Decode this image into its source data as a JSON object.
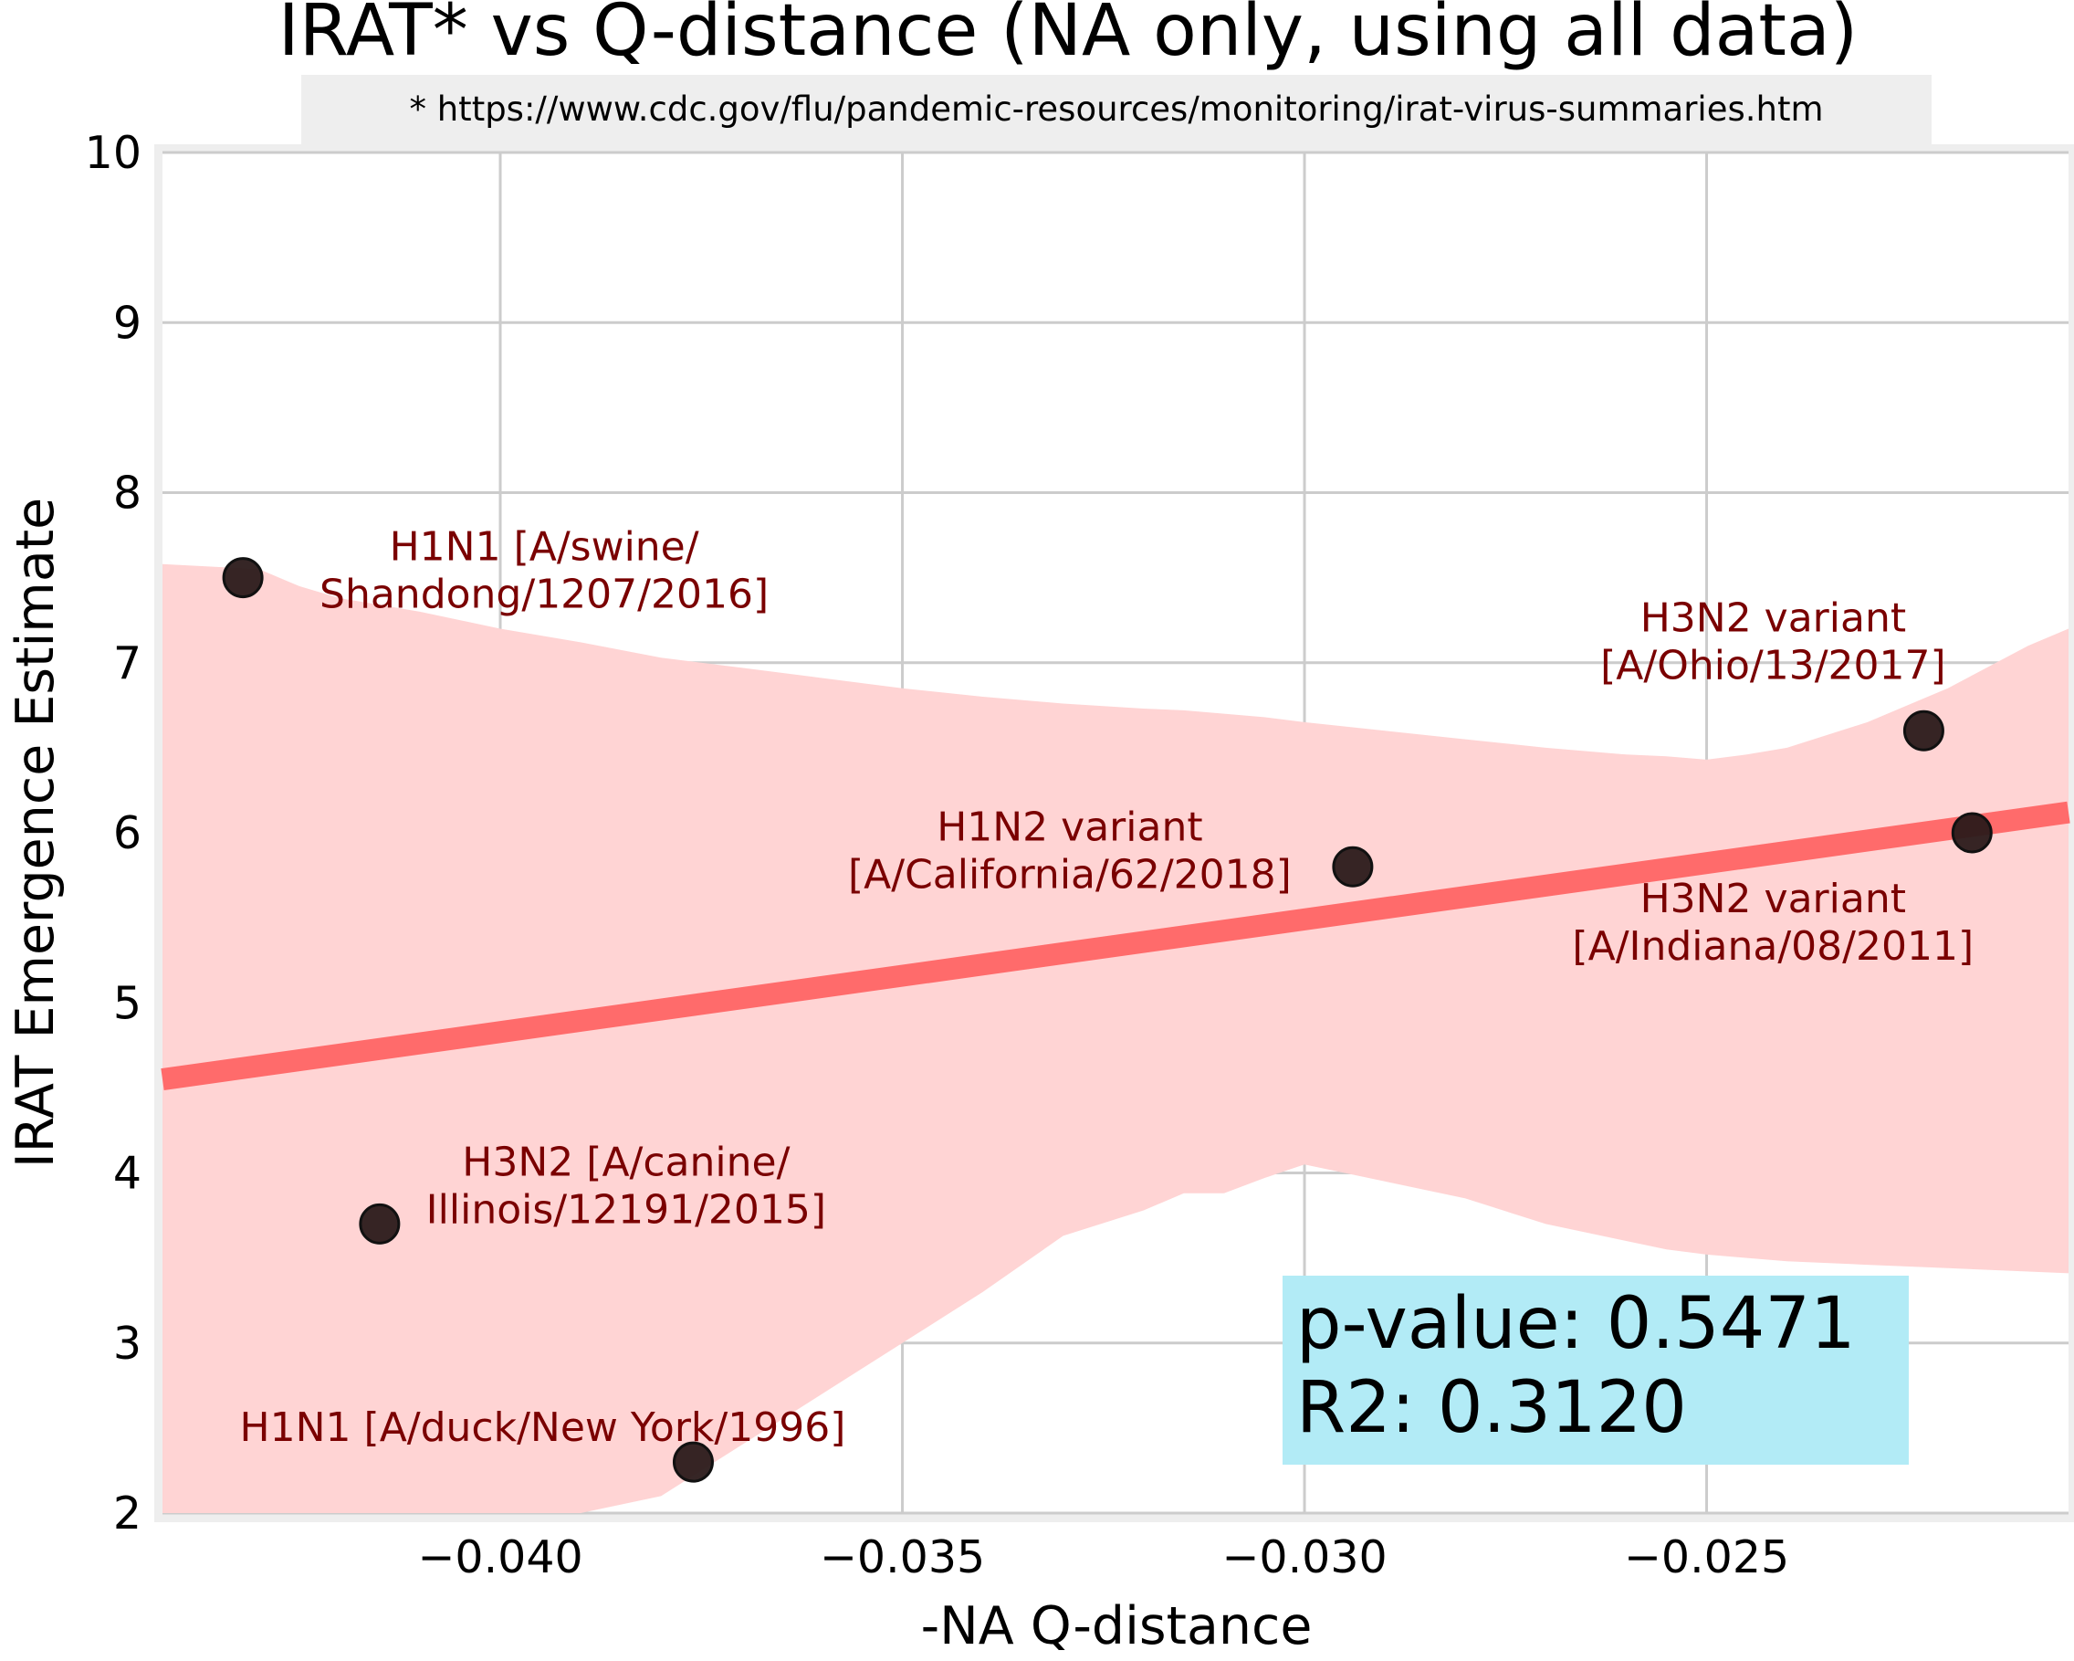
{
  "chart_data": {
    "type": "scatter",
    "title": "IRAT* vs Q-distance (NA only, using all data)",
    "subtitle": "* https://www.cdc.gov/flu/pandemic-resources/monitoring/irat-virus-summaries.htm",
    "xlabel": "-NA Q-distance",
    "ylabel": "IRAT Emergence Estimate",
    "xlim": [
      -0.0442,
      -0.0205
    ],
    "ylim": [
      2,
      10
    ],
    "xticks": [
      -0.04,
      -0.035,
      -0.03,
      -0.025
    ],
    "xtick_labels": [
      "−0.040",
      "−0.035",
      "−0.030",
      "−0.025"
    ],
    "yticks": [
      2,
      3,
      4,
      5,
      6,
      7,
      8,
      9,
      10
    ],
    "ytick_labels": [
      "2",
      "3",
      "4",
      "5",
      "6",
      "7",
      "8",
      "9",
      "10"
    ],
    "grid": true,
    "points": [
      {
        "x": -0.0432,
        "y": 7.5,
        "label_lines": [
          "H1N1 [A/swine/",
          "Shandong/1207/2016]"
        ]
      },
      {
        "x": -0.0415,
        "y": 3.7,
        "label_lines": [
          "H3N2 [A/canine/",
          "Illinois/12191/2015]"
        ]
      },
      {
        "x": -0.0376,
        "y": 2.3,
        "label_lines": [
          "H1N1 [A/duck/New York/1996]"
        ]
      },
      {
        "x": -0.0294,
        "y": 5.8,
        "label_lines": [
          "H1N2 variant",
          "[A/California/62/2018]"
        ]
      },
      {
        "x": -0.0223,
        "y": 6.6,
        "label_lines": [
          "H3N2 variant",
          "[A/Ohio/13/2017]"
        ]
      },
      {
        "x": -0.0217,
        "y": 6.0,
        "label_lines": [
          "H3N2 variant",
          "[A/Indiana/08/2011]"
        ]
      }
    ],
    "regression_line": {
      "x": [
        -0.0442,
        -0.0205
      ],
      "y": [
        4.55,
        6.12
      ],
      "color": "#ff6b6b"
    },
    "confidence_band": {
      "color": "#ffd4d4",
      "x": [
        -0.0442,
        -0.043,
        -0.0425,
        -0.042,
        -0.041,
        -0.04,
        -0.039,
        -0.038,
        -0.037,
        -0.036,
        -0.035,
        -0.034,
        -0.033,
        -0.032,
        -0.0315,
        -0.031,
        -0.0305,
        -0.03,
        -0.029,
        -0.028,
        -0.027,
        -0.026,
        -0.0255,
        -0.025,
        -0.0245,
        -0.024,
        -0.023,
        -0.022,
        -0.021,
        -0.0205
      ],
      "upper": [
        7.58,
        7.55,
        7.45,
        7.38,
        7.3,
        7.2,
        7.12,
        7.03,
        6.97,
        6.91,
        6.85,
        6.8,
        6.76,
        6.73,
        6.72,
        6.7,
        6.68,
        6.65,
        6.6,
        6.55,
        6.5,
        6.46,
        6.45,
        6.43,
        6.46,
        6.5,
        6.65,
        6.85,
        7.1,
        7.2
      ],
      "lower": [
        1.7,
        1.5,
        1.35,
        1.3,
        1.25,
        1.5,
        1.75,
        2.1,
        2.4,
        2.7,
        3.0,
        3.3,
        3.63,
        3.78,
        3.88,
        3.88,
        3.97,
        4.05,
        3.95,
        3.85,
        3.7,
        3.6,
        3.55,
        3.52,
        3.5,
        3.48,
        3.46,
        3.44,
        3.42,
        3.41
      ]
    },
    "stats_box": {
      "p_value_text": "p-value: 0.5471",
      "r2_text": "R2: 0.3120",
      "background": "#b2ebf6"
    }
  }
}
